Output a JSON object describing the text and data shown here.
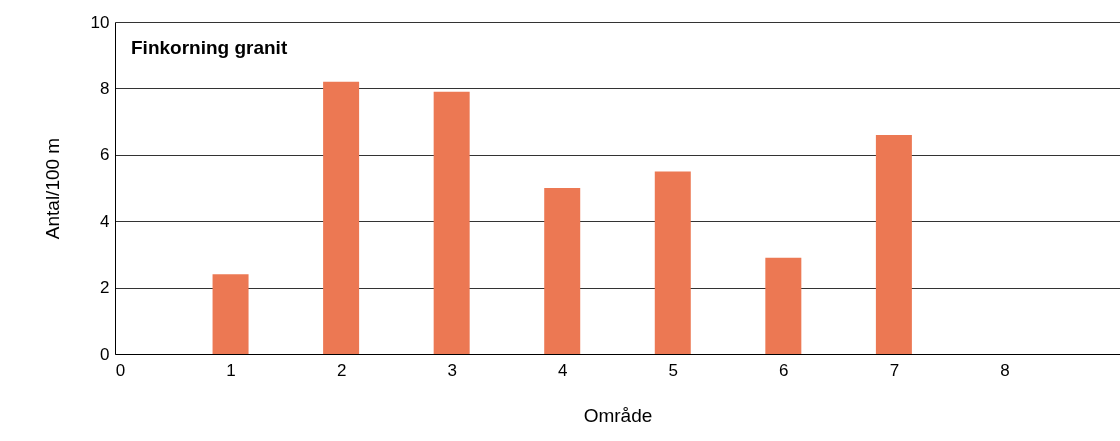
{
  "chart_data": {
    "type": "bar",
    "title": "Finkorning granit",
    "xlabel": "Område",
    "ylabel": "Antal/100 m",
    "x": [
      1,
      2,
      3,
      4,
      5,
      6,
      7
    ],
    "values": [
      2.4,
      8.2,
      7.9,
      5.0,
      5.5,
      2.9,
      6.6
    ],
    "color": "#ec7853",
    "xlim": [
      0,
      9
    ],
    "xticks": [
      0,
      1,
      2,
      3,
      4,
      5,
      6,
      7,
      8
    ],
    "ylim": [
      0,
      10
    ],
    "yticks": [
      0,
      2,
      4,
      6,
      8,
      10
    ],
    "grid": "y"
  }
}
